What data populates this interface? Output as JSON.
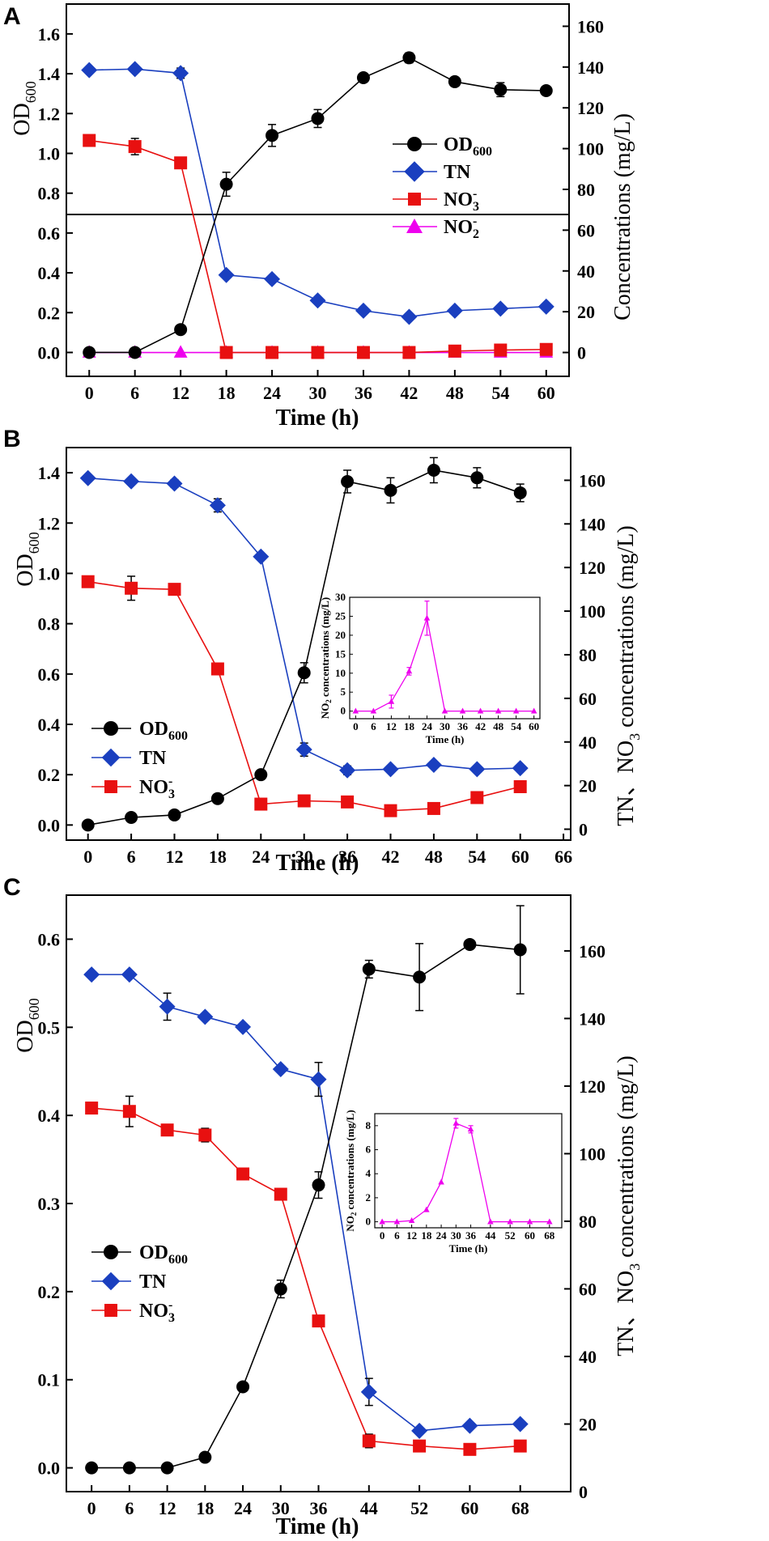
{
  "chart_data": [
    {
      "panel": "A",
      "type": "line",
      "xlabel": "Time (h)",
      "ylabel": "OD600",
      "y2label": "Concentrations (mg/L)",
      "xlim": [
        -3,
        63
      ],
      "xticks": [
        0,
        6,
        12,
        18,
        24,
        30,
        36,
        42,
        48,
        54,
        60
      ],
      "ylim": [
        -0.12,
        1.75
      ],
      "yticks": [
        "0.0",
        "0.2",
        "0.4",
        "0.6",
        "0.8",
        "1.0",
        "1.2",
        "1.4",
        "1.6"
      ],
      "y2lim": [
        -11.7,
        170.9
      ],
      "y2ticks": [
        "0",
        "20",
        "40",
        "60",
        "80",
        "100",
        "120",
        "140",
        "160"
      ],
      "series": [
        {
          "name": "OD600",
          "axis": "left",
          "color": "#000000",
          "marker": "circle",
          "x": [
            0,
            6,
            12,
            18,
            24,
            30,
            36,
            42,
            48,
            54,
            60
          ],
          "y": [
            0,
            0,
            0.115,
            0.845,
            1.09,
            1.175,
            1.38,
            1.48,
            1.36,
            1.32,
            1.315
          ],
          "err": [
            0,
            0,
            0,
            0.06,
            0.055,
            0.045,
            0,
            0.025,
            0,
            0.035,
            0
          ]
        },
        {
          "name": "TN",
          "axis": "right",
          "color": "#1a3fbf",
          "marker": "diamond",
          "x": [
            0,
            6,
            12,
            18,
            24,
            30,
            36,
            42,
            48,
            54,
            60
          ],
          "y": [
            138.5,
            139,
            137,
            38,
            36,
            25.5,
            20.5,
            17.5,
            20.5,
            21.5,
            22.5
          ],
          "err": [
            0,
            1.3,
            2.5,
            0,
            0,
            0,
            0,
            0,
            0,
            0,
            0
          ]
        },
        {
          "name": "NO3-",
          "axis": "right",
          "color": "#e81010",
          "marker": "square",
          "x": [
            0,
            6,
            12,
            18,
            24,
            30,
            36,
            42,
            48,
            54,
            60
          ],
          "y": [
            104,
            101,
            93,
            0,
            0,
            0,
            0,
            0,
            0.7,
            1.2,
            1.5
          ],
          "err": [
            0,
            4,
            2.5,
            0,
            0,
            0,
            0,
            0,
            0,
            0,
            0
          ]
        },
        {
          "name": "NO2-",
          "axis": "right",
          "color": "#ee00ee",
          "marker": "triangle",
          "x": [
            0,
            6,
            12,
            18,
            24,
            30,
            36,
            42,
            48,
            54,
            60
          ],
          "y": [
            0,
            0,
            0,
            0,
            0,
            0,
            0,
            0,
            0,
            0,
            0
          ],
          "err": [
            0,
            0,
            0,
            0,
            0,
            0,
            0,
            0,
            0,
            0,
            0
          ]
        }
      ]
    },
    {
      "panel": "B",
      "type": "line",
      "xlabel": "Time (h)",
      "ylabel": "OD600",
      "y2label": "TN、NO3- concentrations (mg/L)",
      "xlim": [
        -3,
        67
      ],
      "xticks": [
        0,
        6,
        12,
        18,
        24,
        30,
        36,
        42,
        48,
        54,
        60,
        66
      ],
      "ylim": [
        -0.06,
        1.5
      ],
      "yticks": [
        "0.0",
        "0.2",
        "0.4",
        "0.6",
        "0.8",
        "1.0",
        "1.2",
        "1.4"
      ],
      "y2lim": [
        -5,
        175
      ],
      "y2ticks": [
        "0",
        "20",
        "40",
        "60",
        "80",
        "100",
        "120",
        "140",
        "160"
      ],
      "series": [
        {
          "name": "OD600",
          "axis": "left",
          "color": "#000000",
          "marker": "circle",
          "x": [
            0,
            6,
            12,
            18,
            24,
            30,
            36,
            42,
            48,
            54,
            60
          ],
          "y": [
            0,
            0.03,
            0.04,
            0.105,
            0.2,
            0.605,
            1.365,
            1.33,
            1.41,
            1.38,
            1.32
          ],
          "err": [
            0,
            0,
            0,
            0,
            0,
            0.04,
            0.045,
            0.05,
            0.05,
            0.04,
            0.035
          ]
        },
        {
          "name": "TN",
          "axis": "right",
          "color": "#1a3fbf",
          "marker": "diamond",
          "x": [
            0,
            6,
            12,
            18,
            24,
            30,
            36,
            42,
            48,
            54,
            60
          ],
          "y": [
            161,
            159.5,
            158.5,
            148.5,
            125,
            36.5,
            27,
            27.5,
            29.5,
            27.5,
            28
          ],
          "err": [
            0,
            1.3,
            1.8,
            3,
            0,
            3,
            2,
            0,
            0,
            0,
            0
          ]
        },
        {
          "name": "NO3-",
          "axis": "right",
          "color": "#e81010",
          "marker": "square",
          "x": [
            0,
            6,
            12,
            18,
            24,
            30,
            36,
            42,
            48,
            54,
            60
          ],
          "y": [
            113.5,
            110.5,
            110,
            73.5,
            11.5,
            13,
            12.5,
            8.5,
            9.5,
            14.5,
            19.5
          ],
          "err": [
            0,
            5.5,
            0,
            0,
            0,
            0,
            0,
            0,
            0,
            0,
            0
          ]
        }
      ],
      "inset": {
        "type": "line",
        "xlabel": "Time (h)",
        "ylabel": "NO2- concentrations (mg/L)",
        "xlim": [
          -2,
          62
        ],
        "xticks": [
          0,
          6,
          12,
          18,
          24,
          30,
          36,
          42,
          48,
          54,
          60
        ],
        "ylim": [
          -2,
          30
        ],
        "yticks": [
          0,
          5,
          10,
          15,
          20,
          25,
          30
        ],
        "series": [
          {
            "name": "NO2-",
            "color": "#ee00ee",
            "marker": "triangle",
            "x": [
              0,
              6,
              12,
              18,
              24,
              30,
              36,
              42,
              48,
              54,
              60
            ],
            "y": [
              0,
              0,
              2.5,
              10.5,
              24.5,
              0,
              0,
              0,
              0,
              0,
              0
            ],
            "err": [
              0,
              0,
              1.7,
              1,
              4.5,
              0,
              0,
              0,
              0,
              0,
              0
            ]
          }
        ]
      }
    },
    {
      "panel": "C",
      "type": "line",
      "xlabel": "Time (h)",
      "ylabel": "OD600",
      "y2label": "TN、NO3- concentrations (mg/L)",
      "xlim": [
        -4,
        76
      ],
      "xticks": [
        0,
        6,
        12,
        18,
        24,
        30,
        36,
        44,
        52,
        60,
        68
      ],
      "ylim": [
        -0.027,
        0.65
      ],
      "yticks": [
        "0.0",
        "0.1",
        "0.2",
        "0.3",
        "0.4",
        "0.5",
        "0.6"
      ],
      "y2lim": [
        0,
        176.5
      ],
      "y2ticks": [
        "0",
        "20",
        "40",
        "60",
        "80",
        "100",
        "120",
        "140",
        "160"
      ],
      "series": [
        {
          "name": "OD600",
          "axis": "left",
          "color": "#000000",
          "marker": "circle",
          "x": [
            0,
            6,
            12,
            18,
            24,
            30,
            36,
            44,
            52,
            60,
            68
          ],
          "y": [
            0,
            0,
            0,
            0.012,
            0.092,
            0.203,
            0.321,
            0.566,
            0.557,
            0.594,
            0.588
          ],
          "err": [
            0,
            0,
            0,
            0,
            0,
            0.01,
            0.015,
            0.01,
            0.038,
            0,
            0.05
          ]
        },
        {
          "name": "TN",
          "axis": "right",
          "color": "#1a3fbf",
          "marker": "diamond",
          "x": [
            0,
            6,
            12,
            18,
            24,
            30,
            36,
            44,
            52,
            60,
            68
          ],
          "y": [
            153,
            153,
            143.5,
            140.5,
            137.5,
            125,
            122,
            29.5,
            18,
            19.5,
            20
          ],
          "err": [
            0,
            0,
            4,
            0,
            0,
            0,
            5,
            4,
            0,
            0,
            0
          ]
        },
        {
          "name": "NO3-",
          "axis": "right",
          "color": "#e81010",
          "marker": "square",
          "x": [
            0,
            6,
            12,
            18,
            24,
            30,
            36,
            44,
            52,
            60,
            68
          ],
          "y": [
            113.5,
            112.5,
            107,
            105.5,
            94,
            88,
            50.5,
            15,
            13.5,
            12.5,
            13.5
          ],
          "err": [
            0,
            4.5,
            0,
            2,
            0,
            0,
            0,
            2,
            0,
            0,
            0
          ]
        }
      ],
      "inset": {
        "type": "line",
        "xlabel": "Time (h)",
        "ylabel": "NO2- concentrations (mg/L)",
        "xlim": [
          -3,
          73
        ],
        "xticks": [
          0,
          6,
          12,
          18,
          24,
          30,
          36,
          44,
          52,
          60,
          68
        ],
        "ylim": [
          -0.5,
          9
        ],
        "yticks": [
          0,
          2,
          4,
          6,
          8
        ],
        "series": [
          {
            "name": "NO2-",
            "color": "#ee00ee",
            "marker": "triangle",
            "x": [
              0,
              6,
              12,
              18,
              24,
              30,
              36,
              44,
              52,
              60,
              68
            ],
            "y": [
              0,
              0,
              0.1,
              1,
              3.3,
              8.2,
              7.7,
              0,
              0,
              0,
              0
            ],
            "err": [
              0,
              0,
              0,
              0,
              0,
              0.4,
              0.3,
              0,
              0,
              0,
              0
            ]
          }
        ]
      }
    }
  ],
  "text": {
    "panel_A": "A",
    "panel_B": "B",
    "panel_C": "C",
    "time_label": "Time (h)",
    "od_main": "OD",
    "od_sub": "600",
    "conc_A": "Concentrations (mg/L)",
    "conc_BC_pre": "TN、NO",
    "conc_BC_sub": "3",
    "conc_BC_post": " concentrations (mg/L)",
    "leg_od": "OD",
    "leg_od_sub": "600",
    "leg_tn": "TN",
    "leg_no3": "NO",
    "leg_no3_sub": "3",
    "leg_no3_sup": "-",
    "leg_no2": "NO",
    "leg_no2_sub": "2",
    "leg_no2_sup": "-",
    "inset_y_pre": "NO",
    "inset_y_sub": "2",
    "inset_y_post": " concentrations (mg/L)",
    "inset_x": "Time (h)"
  }
}
